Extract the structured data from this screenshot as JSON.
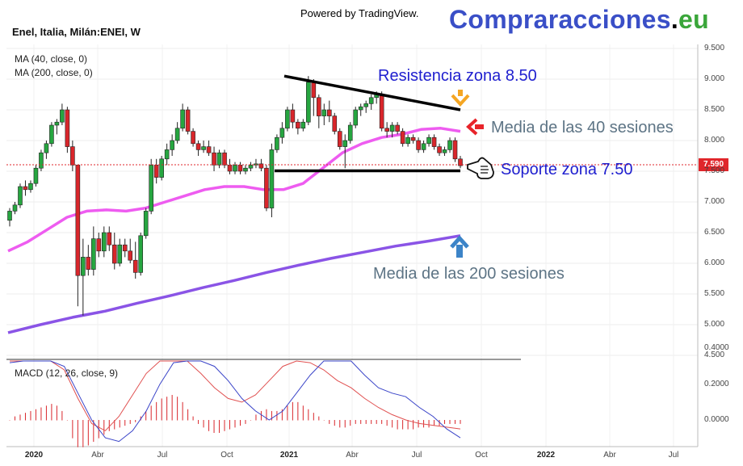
{
  "header": {
    "powered_by": "Powered by TradingView.",
    "brand_part1": "Compraracciones",
    "brand_part2": ".",
    "brand_part3": "eu",
    "symbol_title": "Enel, Italia, Milán:ENEI, W"
  },
  "indicators": {
    "ma40_label": "MA (40, close, 0)",
    "ma200_label": "MA (200, close, 0)",
    "macd_label": "MACD (12, 26, close, 9)"
  },
  "annotations": {
    "resistance": "Resistencia zona 8.50",
    "ma40": "Media de las 40 sesiones",
    "support": "Soporte zona 7.50",
    "ma200": "Media de las 200 sesiones",
    "hand_icon": "pointing-hand-icon"
  },
  "colors": {
    "up_candle": "#26a640",
    "down_candle": "#d9262b",
    "ma40": "#ee5cf0",
    "ma200": "#8a54e6",
    "annotation_blue": "#1f1fcf",
    "annotation_gray": "#5d7485",
    "price_badge": "#e0262b",
    "arrow_orange": "#f5a623",
    "arrow_red": "#e8242a",
    "arrow_blue": "#3c84c8"
  },
  "price_badge": "7.590",
  "chart_data": {
    "type": "candlestick",
    "title": "Enel, Italia, Milán:ENEI, W",
    "price_axis": {
      "ylim": [
        4.5,
        9.5
      ],
      "ticks": [
        "9.500",
        "9.000",
        "8.500",
        "8.000",
        "7.500",
        "7.000",
        "6.500",
        "6.000",
        "5.500",
        "5.000",
        "4.500"
      ],
      "last_price": 7.59
    },
    "x_axis": {
      "ticks": [
        "2020",
        "Abr",
        "Jul",
        "Oct",
        "2021",
        "Abr",
        "Jul",
        "Oct",
        "2022",
        "Abr",
        "Jul"
      ],
      "bold_ticks": [
        "2020",
        "2021",
        "2022"
      ]
    },
    "candles_weekly": [
      {
        "o": 6.7,
        "h": 6.9,
        "l": 6.6,
        "c": 6.85
      },
      {
        "o": 6.85,
        "h": 7.0,
        "l": 6.8,
        "c": 6.95
      },
      {
        "o": 6.95,
        "h": 7.3,
        "l": 6.9,
        "c": 7.25
      },
      {
        "o": 7.25,
        "h": 7.35,
        "l": 7.1,
        "c": 7.2
      },
      {
        "o": 7.2,
        "h": 7.35,
        "l": 7.15,
        "c": 7.3
      },
      {
        "o": 7.3,
        "h": 7.6,
        "l": 7.25,
        "c": 7.55
      },
      {
        "o": 7.55,
        "h": 7.85,
        "l": 7.5,
        "c": 7.8
      },
      {
        "o": 7.8,
        "h": 8.0,
        "l": 7.7,
        "c": 7.95
      },
      {
        "o": 7.95,
        "h": 8.3,
        "l": 7.9,
        "c": 8.25
      },
      {
        "o": 8.25,
        "h": 8.35,
        "l": 8.1,
        "c": 8.3
      },
      {
        "o": 8.3,
        "h": 8.6,
        "l": 8.25,
        "c": 8.5
      },
      {
        "o": 8.5,
        "h": 8.55,
        "l": 7.8,
        "c": 7.9
      },
      {
        "o": 7.9,
        "h": 8.0,
        "l": 7.5,
        "c": 7.6
      },
      {
        "o": 7.6,
        "h": 7.6,
        "l": 5.3,
        "c": 5.8
      },
      {
        "o": 5.8,
        "h": 6.4,
        "l": 5.15,
        "c": 6.1
      },
      {
        "o": 6.1,
        "h": 6.3,
        "l": 5.8,
        "c": 5.9
      },
      {
        "o": 5.9,
        "h": 6.6,
        "l": 5.8,
        "c": 6.4
      },
      {
        "o": 6.4,
        "h": 6.5,
        "l": 6.1,
        "c": 6.2
      },
      {
        "o": 6.2,
        "h": 6.6,
        "l": 6.1,
        "c": 6.5
      },
      {
        "o": 6.5,
        "h": 6.6,
        "l": 6.2,
        "c": 6.3
      },
      {
        "o": 6.3,
        "h": 6.5,
        "l": 5.9,
        "c": 6.0
      },
      {
        "o": 6.0,
        "h": 6.4,
        "l": 5.95,
        "c": 6.3
      },
      {
        "o": 6.3,
        "h": 6.4,
        "l": 6.1,
        "c": 6.2
      },
      {
        "o": 6.2,
        "h": 6.4,
        "l": 6.0,
        "c": 6.05
      },
      {
        "o": 6.05,
        "h": 6.35,
        "l": 5.75,
        "c": 5.85
      },
      {
        "o": 5.85,
        "h": 6.5,
        "l": 5.8,
        "c": 6.45
      },
      {
        "o": 6.45,
        "h": 6.9,
        "l": 6.4,
        "c": 6.85
      },
      {
        "o": 6.85,
        "h": 7.7,
        "l": 6.8,
        "c": 7.6
      },
      {
        "o": 7.6,
        "h": 7.7,
        "l": 7.3,
        "c": 7.4
      },
      {
        "o": 7.4,
        "h": 7.75,
        "l": 7.35,
        "c": 7.7
      },
      {
        "o": 7.7,
        "h": 7.95,
        "l": 7.6,
        "c": 7.85
      },
      {
        "o": 7.85,
        "h": 8.1,
        "l": 7.75,
        "c": 8.0
      },
      {
        "o": 8.0,
        "h": 8.3,
        "l": 7.95,
        "c": 8.2
      },
      {
        "o": 8.2,
        "h": 8.6,
        "l": 8.15,
        "c": 8.5
      },
      {
        "o": 8.5,
        "h": 8.55,
        "l": 8.1,
        "c": 8.15
      },
      {
        "o": 8.15,
        "h": 8.2,
        "l": 7.9,
        "c": 7.95
      },
      {
        "o": 7.95,
        "h": 8.0,
        "l": 7.75,
        "c": 7.85
      },
      {
        "o": 7.85,
        "h": 8.0,
        "l": 7.8,
        "c": 7.9
      },
      {
        "o": 7.9,
        "h": 8.0,
        "l": 7.75,
        "c": 7.8
      },
      {
        "o": 7.8,
        "h": 7.9,
        "l": 7.5,
        "c": 7.6
      },
      {
        "o": 7.6,
        "h": 7.85,
        "l": 7.55,
        "c": 7.8
      },
      {
        "o": 7.8,
        "h": 7.85,
        "l": 7.55,
        "c": 7.6
      },
      {
        "o": 7.6,
        "h": 7.7,
        "l": 7.45,
        "c": 7.5
      },
      {
        "o": 7.5,
        "h": 7.65,
        "l": 7.45,
        "c": 7.6
      },
      {
        "o": 7.6,
        "h": 7.65,
        "l": 7.45,
        "c": 7.5
      },
      {
        "o": 7.5,
        "h": 7.6,
        "l": 7.45,
        "c": 7.55
      },
      {
        "o": 7.55,
        "h": 7.65,
        "l": 7.5,
        "c": 7.6
      },
      {
        "o": 7.6,
        "h": 7.7,
        "l": 7.55,
        "c": 7.62
      },
      {
        "o": 7.62,
        "h": 7.7,
        "l": 7.5,
        "c": 7.55
      },
      {
        "o": 7.55,
        "h": 7.6,
        "l": 6.85,
        "c": 6.9
      },
      {
        "o": 6.9,
        "h": 7.95,
        "l": 6.75,
        "c": 7.85
      },
      {
        "o": 7.85,
        "h": 8.1,
        "l": 7.8,
        "c": 8.05
      },
      {
        "o": 8.05,
        "h": 8.3,
        "l": 7.95,
        "c": 8.2
      },
      {
        "o": 8.2,
        "h": 8.55,
        "l": 8.15,
        "c": 8.5
      },
      {
        "o": 8.5,
        "h": 8.6,
        "l": 8.2,
        "c": 8.3
      },
      {
        "o": 8.3,
        "h": 8.35,
        "l": 8.1,
        "c": 8.2
      },
      {
        "o": 8.2,
        "h": 8.35,
        "l": 8.15,
        "c": 8.3
      },
      {
        "o": 8.3,
        "h": 9.05,
        "l": 8.25,
        "c": 8.95
      },
      {
        "o": 8.95,
        "h": 9.0,
        "l": 8.4,
        "c": 8.7
      },
      {
        "o": 8.7,
        "h": 8.75,
        "l": 8.2,
        "c": 8.4
      },
      {
        "o": 8.4,
        "h": 8.6,
        "l": 8.25,
        "c": 8.5
      },
      {
        "o": 8.5,
        "h": 8.65,
        "l": 8.3,
        "c": 8.4
      },
      {
        "o": 8.4,
        "h": 8.45,
        "l": 8.1,
        "c": 8.15
      },
      {
        "o": 8.15,
        "h": 8.2,
        "l": 7.85,
        "c": 7.9
      },
      {
        "o": 7.9,
        "h": 8.1,
        "l": 7.55,
        "c": 8.0
      },
      {
        "o": 8.0,
        "h": 8.3,
        "l": 7.95,
        "c": 8.25
      },
      {
        "o": 8.25,
        "h": 8.55,
        "l": 8.2,
        "c": 8.5
      },
      {
        "o": 8.5,
        "h": 8.6,
        "l": 8.4,
        "c": 8.55
      },
      {
        "o": 8.55,
        "h": 8.65,
        "l": 8.45,
        "c": 8.6
      },
      {
        "o": 8.6,
        "h": 8.75,
        "l": 8.5,
        "c": 8.7
      },
      {
        "o": 8.7,
        "h": 8.8,
        "l": 8.6,
        "c": 8.75
      },
      {
        "o": 8.75,
        "h": 8.8,
        "l": 8.15,
        "c": 8.2
      },
      {
        "o": 8.2,
        "h": 8.3,
        "l": 8.05,
        "c": 8.15
      },
      {
        "o": 8.15,
        "h": 8.3,
        "l": 8.05,
        "c": 8.25
      },
      {
        "o": 8.25,
        "h": 8.3,
        "l": 8.1,
        "c": 8.15
      },
      {
        "o": 8.15,
        "h": 8.2,
        "l": 7.9,
        "c": 7.95
      },
      {
        "o": 7.95,
        "h": 8.1,
        "l": 7.9,
        "c": 8.05
      },
      {
        "o": 8.05,
        "h": 8.1,
        "l": 7.95,
        "c": 8.0
      },
      {
        "o": 8.0,
        "h": 8.05,
        "l": 7.8,
        "c": 7.85
      },
      {
        "o": 7.85,
        "h": 8.0,
        "l": 7.8,
        "c": 7.95
      },
      {
        "o": 7.95,
        "h": 8.1,
        "l": 7.9,
        "c": 8.05
      },
      {
        "o": 8.05,
        "h": 8.1,
        "l": 7.85,
        "c": 7.9
      },
      {
        "o": 7.9,
        "h": 7.95,
        "l": 7.75,
        "c": 7.8
      },
      {
        "o": 7.8,
        "h": 7.9,
        "l": 7.75,
        "c": 7.85
      },
      {
        "o": 7.85,
        "h": 8.05,
        "l": 7.8,
        "c": 8.0
      },
      {
        "o": 8.0,
        "h": 8.05,
        "l": 7.65,
        "c": 7.7
      },
      {
        "o": 7.7,
        "h": 7.75,
        "l": 7.55,
        "c": 7.59
      }
    ],
    "series": [
      {
        "name": "MA (40, close, 0)",
        "values": [
          6.2,
          6.35,
          6.55,
          6.75,
          6.85,
          6.87,
          6.85,
          6.9,
          7.0,
          7.1,
          7.2,
          7.25,
          7.25,
          7.2,
          7.2,
          7.3,
          7.55,
          7.8,
          7.95,
          8.05,
          8.1,
          8.18,
          8.2,
          8.15
        ]
      },
      {
        "name": "MA (200, close, 0)",
        "values": [
          4.87,
          5.0,
          5.12,
          5.22,
          5.35,
          5.47,
          5.6,
          5.72,
          5.85,
          5.97,
          6.08,
          6.18,
          6.28,
          6.36,
          6.45
        ]
      }
    ],
    "trendlines": [
      {
        "name": "Resistencia zona 8.50",
        "from": 9.05,
        "to": 8.5
      },
      {
        "name": "Soporte zona 7.50",
        "from": 7.52,
        "to": 7.52
      }
    ],
    "macd": {
      "title": "MACD (12, 26, close, 9)",
      "ticks": [
        "0.4000",
        "0.2000",
        "0.0000"
      ],
      "ylim": [
        -0.15,
        0.42
      ]
    }
  }
}
